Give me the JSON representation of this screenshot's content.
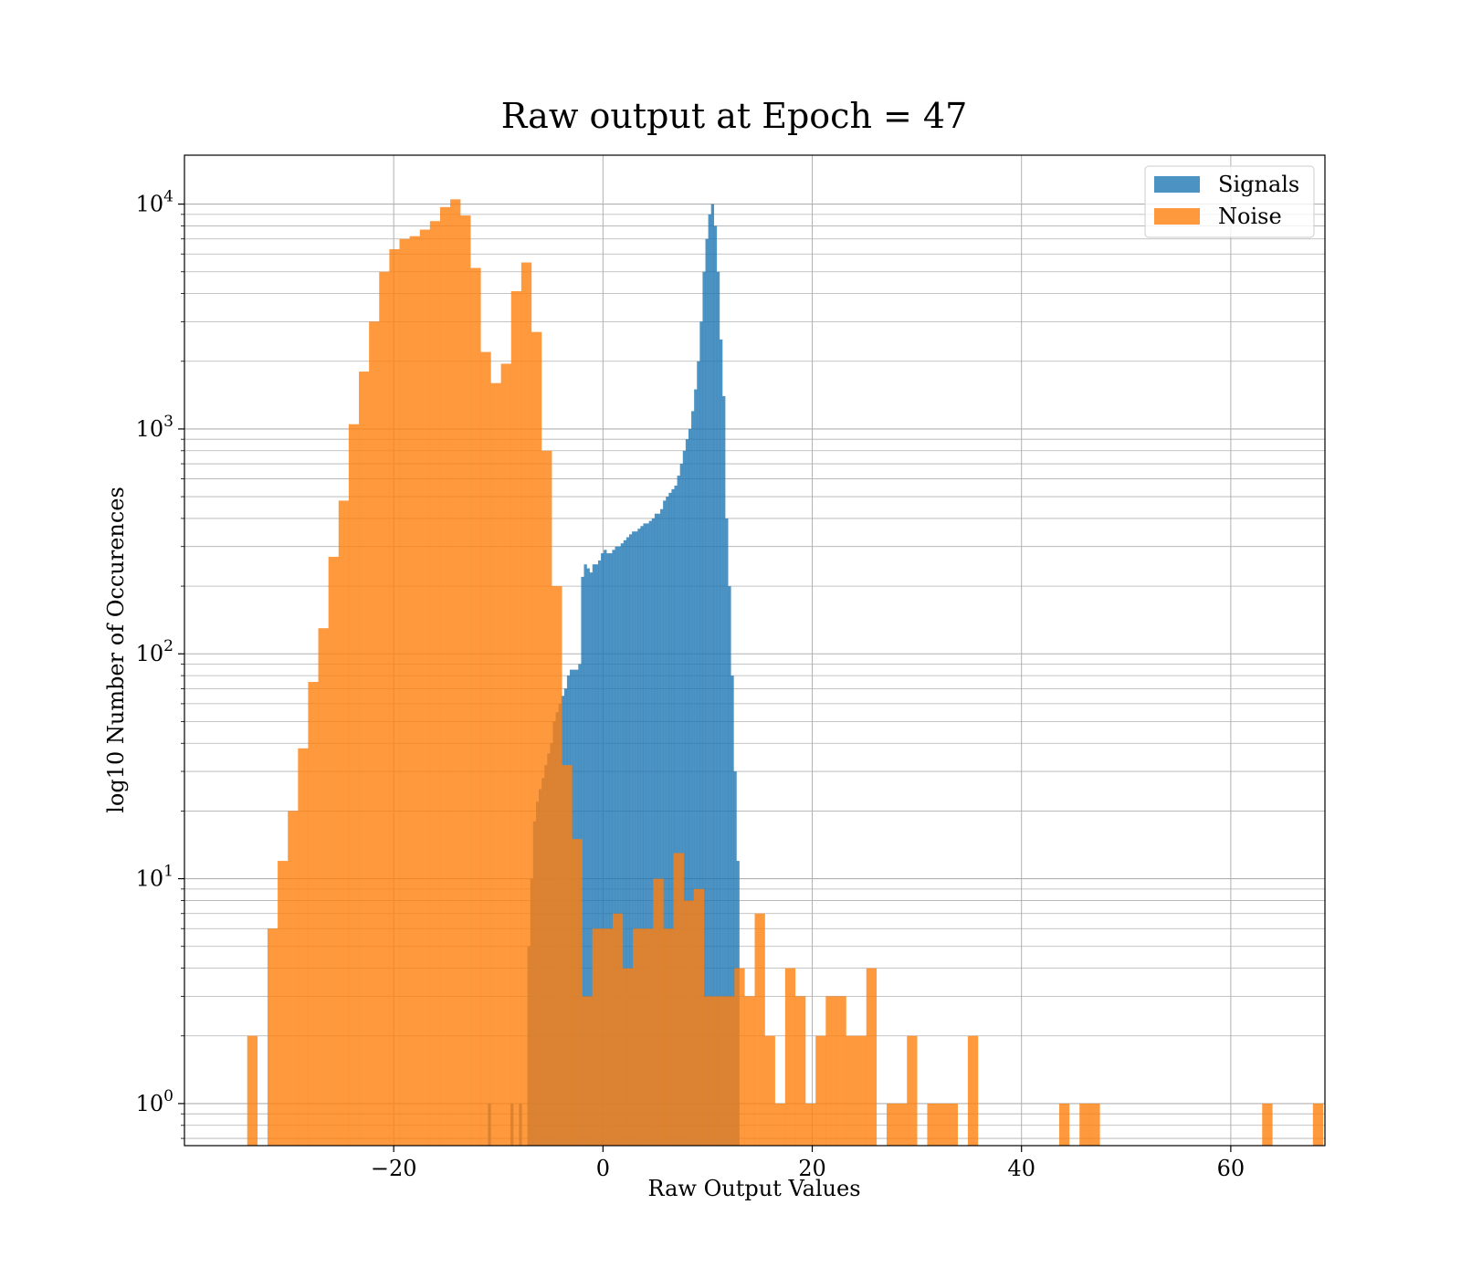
{
  "chart_data": {
    "type": "histogram",
    "title": "Raw output at Epoch = 47",
    "xlabel": "Raw Output Values",
    "ylabel": "log10 Number of Occurences",
    "xlim": [
      -40,
      69
    ],
    "ylim": [
      0.65,
      16500
    ],
    "yscale": "log",
    "grid": true,
    "legend_position": "top-right",
    "x_ticks": [
      -20,
      0,
      20,
      40,
      60
    ],
    "x_tick_labels": [
      "−20",
      "0",
      "20",
      "40",
      "60"
    ],
    "y_ticks": [
      {
        "value": 1,
        "base": "10",
        "exp": "0"
      },
      {
        "value": 10,
        "base": "10",
        "exp": "1"
      },
      {
        "value": 100,
        "base": "10",
        "exp": "2"
      },
      {
        "value": 1000,
        "base": "10",
        "exp": "3"
      },
      {
        "value": 10000,
        "base": "10",
        "exp": "4"
      }
    ],
    "series": [
      {
        "name": "Signals",
        "color": "#1f77b4",
        "opacity": 0.8,
        "bin_start": -11.0,
        "bin_width": 0.27,
        "counts": [
          1,
          0,
          0,
          0,
          0,
          0,
          0,
          0,
          1,
          0,
          0,
          1,
          0,
          0,
          5,
          10,
          18,
          22,
          25,
          28,
          32,
          36,
          40,
          50,
          55,
          60,
          65,
          70,
          80,
          85,
          85,
          85,
          90,
          220,
          250,
          240,
          230,
          250,
          250,
          260,
          280,
          290,
          280,
          280,
          290,
          300,
          300,
          310,
          320,
          330,
          340,
          350,
          350,
          360,
          370,
          380,
          380,
          390,
          400,
          420,
          420,
          440,
          480,
          500,
          520,
          540,
          560,
          620,
          700,
          800,
          900,
          1000,
          1200,
          1500,
          2000,
          3000,
          5000,
          7000,
          9000,
          10000,
          8000,
          5000,
          2500,
          1400,
          400,
          200,
          80,
          30,
          12,
          0,
          0,
          0,
          0,
          0
        ]
      },
      {
        "name": "Noise",
        "color": "#ff7f0e",
        "opacity": 0.8,
        "bin_start": -34.0,
        "bin_width": 0.97,
        "counts": [
          2,
          0,
          6,
          12,
          20,
          38,
          75,
          130,
          270,
          480,
          1050,
          1800,
          3000,
          5000,
          6300,
          7000,
          7200,
          7700,
          8400,
          9700,
          10500,
          8900,
          5200,
          2200,
          1600,
          1950,
          4100,
          5500,
          2700,
          800,
          200,
          32,
          15,
          3,
          6,
          6,
          7,
          4,
          6,
          6,
          10,
          6,
          13,
          8,
          9,
          3,
          3,
          3,
          4,
          3,
          7,
          2,
          1,
          4,
          3,
          1,
          2,
          3,
          3,
          2,
          2,
          4,
          0,
          1,
          1,
          2,
          0,
          1,
          1,
          1,
          0,
          2,
          0,
          0,
          0,
          0,
          0,
          0,
          0,
          0,
          1,
          0,
          1,
          1,
          0,
          0,
          0,
          0,
          0,
          0,
          0,
          0,
          0,
          0,
          0,
          0,
          0,
          0,
          0,
          0,
          1,
          0,
          0,
          0,
          0,
          1
        ]
      }
    ]
  }
}
